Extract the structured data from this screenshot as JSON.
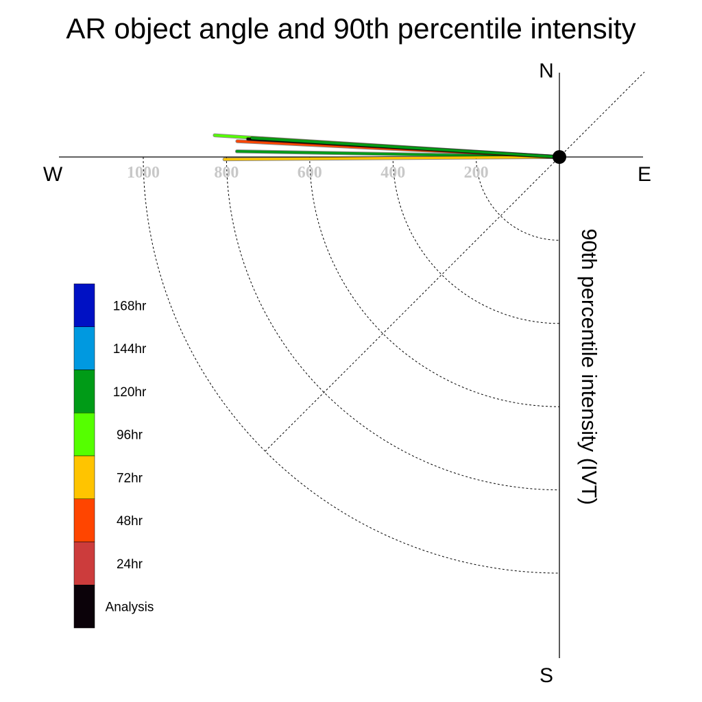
{
  "chart_data": {
    "type": "polar",
    "title": "AR object angle and 90th percentile intensity",
    "radial_label": "90th percentile intensity (IVT)",
    "compass": {
      "north": "N",
      "south": "S",
      "east": "E",
      "west": "W"
    },
    "radial_ticks": [
      200,
      400,
      600,
      800,
      1000
    ],
    "radial_range": [
      0,
      1100
    ],
    "angle_convention": "degrees counterclockwise from West",
    "series": [
      {
        "name": "168hr",
        "color": "#0011c4",
        "angle": null,
        "value": null
      },
      {
        "name": "144hr",
        "color": "#0099e0",
        "angle": null,
        "value": null
      },
      {
        "name": "120hr",
        "color": "#009b17",
        "angle": 1.0,
        "value": 775
      },
      {
        "name": "96hr",
        "color": "#55ff00",
        "angle": 3.6,
        "value": 830
      },
      {
        "name": "72hr",
        "color": "#ffc400",
        "angle": -0.4,
        "value": 805
      },
      {
        "name": "48hr",
        "color": "#ff4500",
        "angle": 2.8,
        "value": 775
      },
      {
        "name": "24hr",
        "color": "#cc3c3c",
        "angle": null,
        "value": null
      },
      {
        "name": "Analysis",
        "color": "#0b0209",
        "angle": 3.3,
        "value": 750
      }
    ],
    "extra_lines": [
      {
        "series": "120hr",
        "angle": 3.5,
        "value": 740
      }
    ]
  }
}
